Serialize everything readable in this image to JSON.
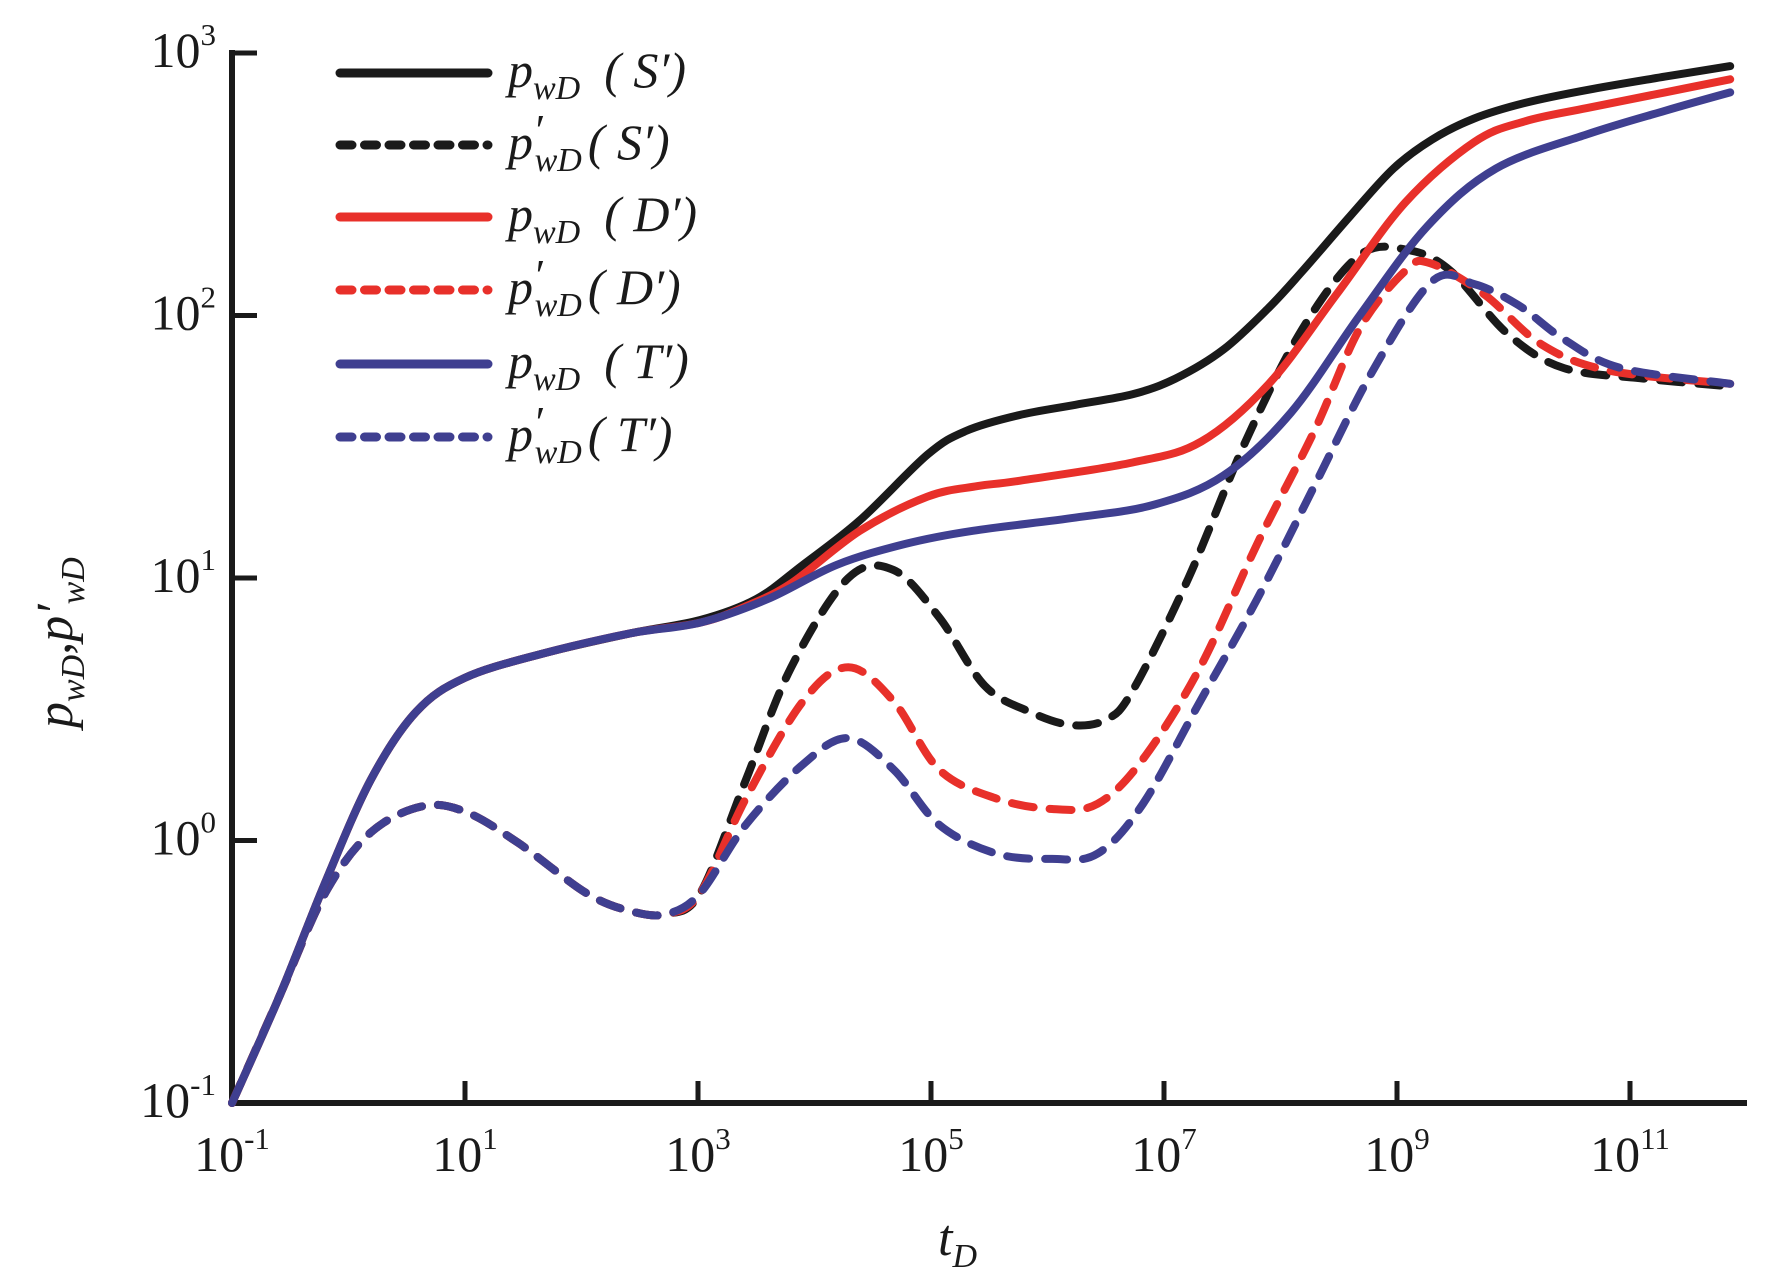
{
  "chart_data": {
    "type": "line",
    "title": "",
    "xlabel": "t_D",
    "ylabel": "p_wD, p'_wD",
    "xscale": "log",
    "yscale": "log",
    "xlim": [
      0.1,
      1000000000000.0
    ],
    "ylim": [
      0.1,
      1000
    ],
    "grid": false,
    "legend_position": "top-left",
    "x_ticks": [
      {
        "base": "10",
        "exp": "-1",
        "value": 0.1
      },
      {
        "base": "10",
        "exp": "1",
        "value": 10
      },
      {
        "base": "10",
        "exp": "3",
        "value": 1000
      },
      {
        "base": "10",
        "exp": "5",
        "value": 100000
      },
      {
        "base": "10",
        "exp": "7",
        "value": 10000000
      },
      {
        "base": "10",
        "exp": "9",
        "value": 1000000000
      },
      {
        "base": "10",
        "exp": "11",
        "value": 100000000000
      }
    ],
    "y_ticks": [
      {
        "base": "10",
        "exp": "-1",
        "value": 0.1
      },
      {
        "base": "10",
        "exp": "0",
        "value": 1
      },
      {
        "base": "10",
        "exp": "1",
        "value": 10
      },
      {
        "base": "10",
        "exp": "2",
        "value": 100
      },
      {
        "base": "10",
        "exp": "3",
        "value": 1000
      }
    ],
    "axis_titles": {
      "x": {
        "main": "t",
        "sub": "D"
      },
      "y": {
        "p1": "p",
        "sub1": "wD",
        "sep": ",",
        "p2": "p′",
        "sub2": "wD"
      }
    },
    "series_note": "points given as [log10(t_D), log10(value)]",
    "series": [
      {
        "name": "p_wD (S′)",
        "legend": {
          "sym": "p",
          "prime": "",
          "sub": "wD",
          "case": "( S′)"
        },
        "color": "#1a1a1a",
        "style": "solid",
        "points": [
          [
            -1,
            -1
          ],
          [
            -0.59,
            -0.59
          ],
          [
            -0.2,
            -0.16
          ],
          [
            0.19,
            0.23
          ],
          [
            0.58,
            0.49
          ],
          [
            1,
            0.62
          ],
          [
            1.65,
            0.71
          ],
          [
            2.43,
            0.79
          ],
          [
            3.02,
            0.84
          ],
          [
            3.5,
            0.92
          ],
          [
            3.9,
            1.05
          ],
          [
            4.39,
            1.22
          ],
          [
            4.97,
            1.47
          ],
          [
            5.3,
            1.56
          ],
          [
            5.75,
            1.62
          ],
          [
            6.24,
            1.66
          ],
          [
            6.73,
            1.7
          ],
          [
            7.1,
            1.76
          ],
          [
            7.51,
            1.87
          ],
          [
            7.9,
            2.03
          ],
          [
            8.19,
            2.17
          ],
          [
            8.6,
            2.38
          ],
          [
            8.97,
            2.56
          ],
          [
            9.3,
            2.67
          ],
          [
            9.66,
            2.75
          ],
          [
            10.1,
            2.81
          ],
          [
            10.64,
            2.86
          ],
          [
            11.3,
            2.91
          ],
          [
            11.86,
            2.95
          ]
        ]
      },
      {
        "name": "p′_wD (S′)",
        "legend": {
          "sym": "p",
          "prime": "′",
          "sub": "wD",
          "case": "( S′)"
        },
        "color": "#1a1a1a",
        "style": "dashed",
        "points": [
          [
            -1,
            -1
          ],
          [
            -0.59,
            -0.59
          ],
          [
            -0.2,
            -0.2
          ],
          [
            0.19,
            0.03
          ],
          [
            0.63,
            0.13
          ],
          [
            1,
            0.11
          ],
          [
            1.46,
            -0.01
          ],
          [
            2.04,
            -0.2
          ],
          [
            2.43,
            -0.27
          ],
          [
            2.73,
            -0.28
          ],
          [
            3.02,
            -0.2
          ],
          [
            3.41,
            0.23
          ],
          [
            3.8,
            0.66
          ],
          [
            4.29,
            1.0
          ],
          [
            4.68,
            1.03
          ],
          [
            5.07,
            0.85
          ],
          [
            5.46,
            0.59
          ],
          [
            5.85,
            0.49
          ],
          [
            6.2,
            0.44
          ],
          [
            6.5,
            0.46
          ],
          [
            6.73,
            0.57
          ],
          [
            7.21,
            1.0
          ],
          [
            7.7,
            1.52
          ],
          [
            8.19,
            1.95
          ],
          [
            8.68,
            2.23
          ],
          [
            9.09,
            2.25
          ],
          [
            9.46,
            2.17
          ],
          [
            9.95,
            1.93
          ],
          [
            10.43,
            1.8
          ],
          [
            11.11,
            1.76
          ],
          [
            11.86,
            1.73
          ]
        ]
      },
      {
        "name": "p_wD (D′)",
        "legend": {
          "sym": "p",
          "prime": "",
          "sub": "wD",
          "case": "( D′)"
        },
        "color": "#e8302a",
        "style": "solid",
        "points": [
          [
            -1,
            -1
          ],
          [
            -0.59,
            -0.59
          ],
          [
            -0.2,
            -0.16
          ],
          [
            0.19,
            0.23
          ],
          [
            0.58,
            0.49
          ],
          [
            1,
            0.62
          ],
          [
            1.65,
            0.71
          ],
          [
            2.43,
            0.79
          ],
          [
            3.02,
            0.83
          ],
          [
            3.4,
            0.89
          ],
          [
            3.8,
            0.98
          ],
          [
            4.39,
            1.18
          ],
          [
            4.97,
            1.31
          ],
          [
            5.4,
            1.35
          ],
          [
            5.75,
            1.37
          ],
          [
            6.73,
            1.44
          ],
          [
            7.32,
            1.52
          ],
          [
            7.9,
            1.74
          ],
          [
            8.48,
            2.08
          ],
          [
            9.07,
            2.43
          ],
          [
            9.66,
            2.66
          ],
          [
            10.1,
            2.74
          ],
          [
            10.63,
            2.79
          ],
          [
            11.3,
            2.85
          ],
          [
            11.86,
            2.9
          ]
        ]
      },
      {
        "name": "p′_wD (D′)",
        "legend": {
          "sym": "p",
          "prime": "′",
          "sub": "wD",
          "case": "( D′)"
        },
        "color": "#e8302a",
        "style": "dashed",
        "points": [
          [
            -1,
            -1
          ],
          [
            -0.59,
            -0.59
          ],
          [
            -0.2,
            -0.2
          ],
          [
            0.19,
            0.03
          ],
          [
            0.63,
            0.13
          ],
          [
            1,
            0.11
          ],
          [
            1.46,
            -0.01
          ],
          [
            2.04,
            -0.2
          ],
          [
            2.43,
            -0.27
          ],
          [
            2.73,
            -0.28
          ],
          [
            3.02,
            -0.2
          ],
          [
            3.41,
            0.16
          ],
          [
            3.9,
            0.53
          ],
          [
            4.29,
            0.66
          ],
          [
            4.68,
            0.53
          ],
          [
            5.07,
            0.27
          ],
          [
            5.56,
            0.16
          ],
          [
            6.04,
            0.12
          ],
          [
            6.43,
            0.14
          ],
          [
            6.82,
            0.31
          ],
          [
            7.31,
            0.66
          ],
          [
            7.8,
            1.13
          ],
          [
            8.29,
            1.56
          ],
          [
            8.68,
            1.95
          ],
          [
            9.07,
            2.17
          ],
          [
            9.28,
            2.2
          ],
          [
            9.75,
            2.08
          ],
          [
            10.24,
            1.89
          ],
          [
            10.82,
            1.79
          ],
          [
            11.86,
            1.74
          ]
        ]
      },
      {
        "name": "p_wD (T′)",
        "legend": {
          "sym": "p",
          "prime": "",
          "sub": "wD",
          "case": "( T′)"
        },
        "color": "#3f3f90",
        "style": "solid",
        "points": [
          [
            -1,
            -1
          ],
          [
            -0.59,
            -0.59
          ],
          [
            -0.2,
            -0.16
          ],
          [
            0.19,
            0.23
          ],
          [
            0.58,
            0.49
          ],
          [
            1,
            0.62
          ],
          [
            1.65,
            0.71
          ],
          [
            2.43,
            0.79
          ],
          [
            3.02,
            0.83
          ],
          [
            3.6,
            0.92
          ],
          [
            4.19,
            1.05
          ],
          [
            4.78,
            1.13
          ],
          [
            5.36,
            1.18
          ],
          [
            6.24,
            1.23
          ],
          [
            6.92,
            1.28
          ],
          [
            7.51,
            1.39
          ],
          [
            8.09,
            1.63
          ],
          [
            8.68,
            2.0
          ],
          [
            9.26,
            2.34
          ],
          [
            9.85,
            2.56
          ],
          [
            10.63,
            2.69
          ],
          [
            11.3,
            2.78
          ],
          [
            11.86,
            2.85
          ]
        ]
      },
      {
        "name": "p′_wD (T′)",
        "legend": {
          "sym": "p",
          "prime": "′",
          "sub": "wD",
          "case": "( T′)"
        },
        "color": "#3f3f90",
        "style": "dashed",
        "points": [
          [
            -1,
            -1
          ],
          [
            -0.59,
            -0.59
          ],
          [
            -0.2,
            -0.2
          ],
          [
            0.19,
            0.03
          ],
          [
            0.63,
            0.13
          ],
          [
            1,
            0.11
          ],
          [
            1.46,
            -0.01
          ],
          [
            2.04,
            -0.2
          ],
          [
            2.43,
            -0.27
          ],
          [
            2.73,
            -0.28
          ],
          [
            3.02,
            -0.2
          ],
          [
            3.41,
            0.06
          ],
          [
            3.9,
            0.29
          ],
          [
            4.29,
            0.39
          ],
          [
            4.68,
            0.27
          ],
          [
            5.07,
            0.06
          ],
          [
            5.56,
            -0.05
          ],
          [
            6.04,
            -0.07
          ],
          [
            6.43,
            -0.05
          ],
          [
            6.82,
            0.14
          ],
          [
            7.31,
            0.53
          ],
          [
            7.8,
            0.92
          ],
          [
            8.29,
            1.35
          ],
          [
            8.78,
            1.78
          ],
          [
            9.3,
            2.13
          ],
          [
            9.66,
            2.12
          ],
          [
            10.04,
            2.04
          ],
          [
            10.43,
            1.91
          ],
          [
            10.92,
            1.8
          ],
          [
            11.86,
            1.74
          ]
        ]
      }
    ]
  }
}
